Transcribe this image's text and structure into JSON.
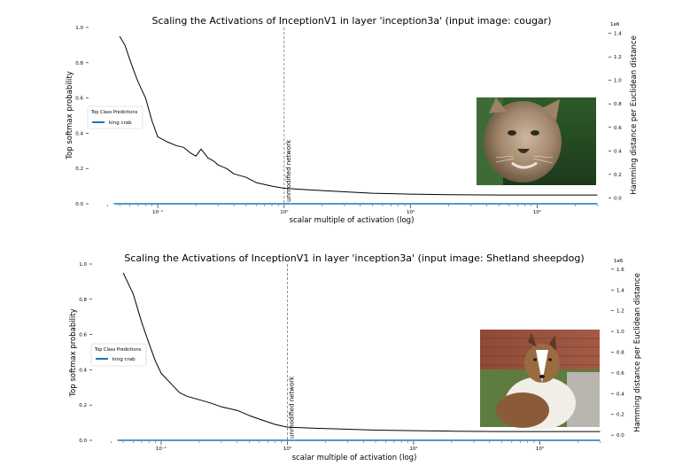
{
  "figure": {
    "panels": [
      {
        "title": "Scaling the Activations of InceptionV1 in layer 'inception3a' (input image: cougar)",
        "xlabel": "scalar multiple of activation (log)",
        "ylabel_left": "Top softmax probability",
        "ylabel_right": "Hamming distance per Euclidean distance",
        "right_axis_multiplier": "1e6",
        "annotation": "unmodified network",
        "legend_title": "Top Class Predictions",
        "legend_entries": [
          "king crab"
        ],
        "photo_subject": "cougar"
      },
      {
        "title": "Scaling the Activations of InceptionV1 in layer 'inception3a' (input image: Shetland sheepdog)",
        "xlabel": "scalar multiple of activation (log)",
        "ylabel_left": "Top softmax probability",
        "ylabel_right": "Hamming distance per Euclidean distance",
        "right_axis_multiplier": "1e6",
        "annotation": "unmodified network",
        "legend_title": "Top Class Predictions",
        "legend_entries": [
          "king crab"
        ],
        "photo_subject": "Shetland sheepdog"
      }
    ]
  },
  "chart_data": [
    {
      "type": "line",
      "title": "Scaling the Activations of InceptionV1 in layer 'inception3a' (input image: cougar)",
      "xlabel": "scalar multiple of activation (log)",
      "ylabel": "Top softmax probability",
      "y2label": "Hamming distance per Euclidean distance",
      "xscale": "log",
      "xlim": [
        0.035,
        350
      ],
      "ylim": [
        0,
        1.0
      ],
      "y2lim": [
        -0.05,
        1.45
      ],
      "y2_multiplier": "1e6",
      "xticks": [
        {
          "v": 0.1,
          "label": "10⁻¹"
        },
        {
          "v": 1,
          "label": "10⁰"
        },
        {
          "v": 10,
          "label": "10¹"
        },
        {
          "v": 100,
          "label": "10²"
        }
      ],
      "yticks": [
        "0.0",
        "0.2",
        "0.4",
        "0.6",
        "0.8",
        "1.0"
      ],
      "y2ticks": [
        "0.0",
        "0.2",
        "0.4",
        "0.6",
        "0.8",
        "1.0",
        "1.2",
        "1.4"
      ],
      "reference_line": {
        "x": 1,
        "label": "unmodified network"
      },
      "legend": {
        "title": "Top Class Predictions",
        "entries": [
          "king crab"
        ],
        "position": "left"
      },
      "series": [
        {
          "name": "Top softmax probability",
          "color": "#000000",
          "axis": "left",
          "points": [
            [
              0.05,
              0.95
            ],
            [
              0.055,
              0.9
            ],
            [
              0.06,
              0.82
            ],
            [
              0.065,
              0.75
            ],
            [
              0.07,
              0.69
            ],
            [
              0.08,
              0.6
            ],
            [
              0.09,
              0.47
            ],
            [
              0.1,
              0.38
            ],
            [
              0.12,
              0.35
            ],
            [
              0.14,
              0.33
            ],
            [
              0.16,
              0.32
            ],
            [
              0.18,
              0.29
            ],
            [
              0.2,
              0.27
            ],
            [
              0.22,
              0.31
            ],
            [
              0.25,
              0.26
            ],
            [
              0.28,
              0.24
            ],
            [
              0.3,
              0.22
            ],
            [
              0.35,
              0.2
            ],
            [
              0.4,
              0.17
            ],
            [
              0.5,
              0.15
            ],
            [
              0.6,
              0.12
            ],
            [
              0.8,
              0.1
            ],
            [
              1,
              0.088
            ],
            [
              1.5,
              0.08
            ],
            [
              2,
              0.075
            ],
            [
              3,
              0.068
            ],
            [
              5,
              0.06
            ],
            [
              10,
              0.055
            ],
            [
              20,
              0.052
            ],
            [
              50,
              0.05
            ],
            [
              100,
              0.05
            ],
            [
              300,
              0.05
            ]
          ]
        },
        {
          "name": "king crab",
          "color": "#1f77b4",
          "axis": "left",
          "points": [
            [
              0.045,
              0.0
            ],
            [
              300,
              0.0
            ]
          ]
        }
      ]
    },
    {
      "type": "line",
      "title": "Scaling the Activations of InceptionV1 in layer 'inception3a' (input image: Shetland sheepdog)",
      "xlabel": "scalar multiple of activation (log)",
      "ylabel": "Top softmax probability",
      "y2label": "Hamming distance per Euclidean distance",
      "xscale": "log",
      "xlim": [
        0.035,
        350
      ],
      "ylim": [
        0,
        1.0
      ],
      "y2lim": [
        -0.05,
        1.65
      ],
      "y2_multiplier": "1e6",
      "xticks": [
        {
          "v": 0.1,
          "label": "10⁻¹"
        },
        {
          "v": 1,
          "label": "10⁰"
        },
        {
          "v": 10,
          "label": "10¹"
        },
        {
          "v": 100,
          "label": "10²"
        }
      ],
      "yticks": [
        "0.0",
        "0.2",
        "0.4",
        "0.6",
        "0.8",
        "1.0"
      ],
      "y2ticks": [
        "0.0",
        "0.2",
        "0.4",
        "0.6",
        "0.8",
        "1.0",
        "1.2",
        "1.4",
        "1.6"
      ],
      "reference_line": {
        "x": 1,
        "label": "unmodified network"
      },
      "legend": {
        "title": "Top Class Predictions",
        "entries": [
          "king crab"
        ],
        "position": "left"
      },
      "series": [
        {
          "name": "Top softmax probability",
          "color": "#000000",
          "axis": "left",
          "points": [
            [
              0.05,
              0.95
            ],
            [
              0.06,
              0.83
            ],
            [
              0.07,
              0.67
            ],
            [
              0.08,
              0.55
            ],
            [
              0.09,
              0.45
            ],
            [
              0.1,
              0.38
            ],
            [
              0.12,
              0.32
            ],
            [
              0.14,
              0.27
            ],
            [
              0.16,
              0.25
            ],
            [
              0.2,
              0.23
            ],
            [
              0.25,
              0.21
            ],
            [
              0.3,
              0.19
            ],
            [
              0.4,
              0.17
            ],
            [
              0.5,
              0.14
            ],
            [
              0.6,
              0.12
            ],
            [
              0.8,
              0.09
            ],
            [
              1,
              0.075
            ],
            [
              1.5,
              0.07
            ],
            [
              2,
              0.067
            ],
            [
              3,
              0.063
            ],
            [
              5,
              0.058
            ],
            [
              10,
              0.055
            ],
            [
              20,
              0.052
            ],
            [
              50,
              0.05
            ],
            [
              100,
              0.05
            ],
            [
              300,
              0.05
            ]
          ]
        },
        {
          "name": "king crab",
          "color": "#1f77b4",
          "axis": "left",
          "points": [
            [
              0.045,
              0.0
            ],
            [
              300,
              0.0
            ]
          ]
        }
      ]
    }
  ]
}
